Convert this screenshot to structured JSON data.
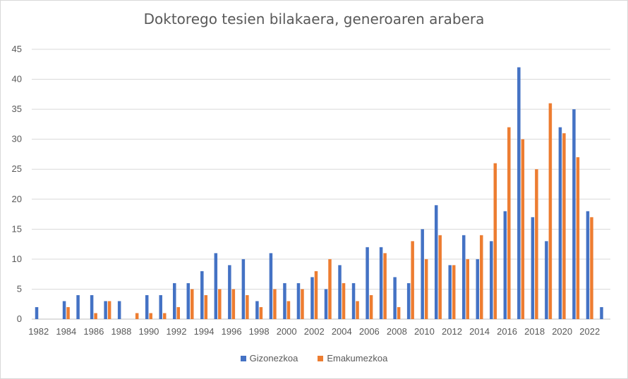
{
  "chart_data": {
    "type": "bar",
    "title": "Doktorego tesien bilakaera, generoaren arabera",
    "xlabel": "",
    "ylabel": "",
    "ylim": [
      0,
      45
    ],
    "yticks": [
      0,
      5,
      10,
      15,
      20,
      25,
      30,
      35,
      40,
      45
    ],
    "grid": true,
    "legend_position": "bottom",
    "x_tick_labels": [
      "1982",
      "1984",
      "1986",
      "1988",
      "1990",
      "1992",
      "1994",
      "1996",
      "1998",
      "2000",
      "2002",
      "2004",
      "2006",
      "2008",
      "2010",
      "2012",
      "2014",
      "2016",
      "2018",
      "2020",
      "2022"
    ],
    "categories": [
      "1982",
      "1983",
      "1984",
      "1985",
      "1986",
      "1987",
      "1988",
      "1989",
      "1990",
      "1991",
      "1992",
      "1993",
      "1994",
      "1995",
      "1996",
      "1997",
      "1998",
      "1999",
      "2000",
      "2001",
      "2002",
      "2003",
      "2004",
      "2005",
      "2006",
      "2007",
      "2008",
      "2009",
      "2010",
      "2011",
      "2012",
      "2013",
      "2014",
      "2015",
      "2016",
      "2017",
      "2018",
      "2019",
      "2020",
      "2021",
      "2022",
      "2023"
    ],
    "series": [
      {
        "name": "Gizonezkoa",
        "color": "#4472c4",
        "values": [
          2,
          0,
          3,
          4,
          4,
          3,
          3,
          0,
          4,
          4,
          6,
          6,
          8,
          11,
          9,
          10,
          3,
          11,
          6,
          6,
          7,
          5,
          9,
          6,
          12,
          12,
          7,
          6,
          15,
          19,
          9,
          14,
          10,
          13,
          18,
          42,
          17,
          13,
          32,
          35,
          18,
          2
        ]
      },
      {
        "name": "Emakumezkoa",
        "color": "#ed7d31",
        "values": [
          0,
          0,
          2,
          0,
          1,
          3,
          0,
          1,
          1,
          1,
          2,
          5,
          4,
          5,
          5,
          4,
          2,
          5,
          3,
          5,
          8,
          10,
          6,
          3,
          4,
          11,
          2,
          13,
          10,
          14,
          9,
          10,
          14,
          26,
          32,
          30,
          25,
          36,
          31,
          27,
          17,
          0
        ]
      }
    ]
  }
}
